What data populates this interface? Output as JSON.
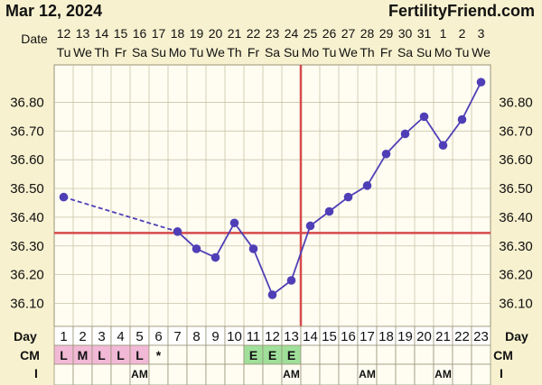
{
  "header": {
    "date_text": "Mar 12, 2024",
    "brand": "FertilityFriend.com"
  },
  "labels": {
    "date": "Date",
    "day": "Day",
    "cm": "CM",
    "i": "I"
  },
  "colors": {
    "background": "#f7f1cf",
    "plot_bg": "#fffdf2",
    "grid": "#c9c3a8",
    "series": "#4f3fb6",
    "coverline": "#d64a4a",
    "cm_pink": "#f2b9d6",
    "cm_green": "#9fdf9a",
    "day_highlight": "#ffffff"
  },
  "chart_data": {
    "type": "line",
    "title": "",
    "dates": [
      "12",
      "13",
      "14",
      "15",
      "16",
      "17",
      "18",
      "19",
      "20",
      "21",
      "22",
      "23",
      "24",
      "25",
      "26",
      "27",
      "28",
      "29",
      "30",
      "31",
      "1",
      "2",
      "3"
    ],
    "weekdays": [
      "Tu",
      "We",
      "Th",
      "Fr",
      "Sa",
      "Su",
      "Mo",
      "Tu",
      "We",
      "Th",
      "Fr",
      "Sa",
      "Su",
      "Mo",
      "Tu",
      "We",
      "Th",
      "Fr",
      "Sa",
      "Su",
      "Mo",
      "Tu",
      "We"
    ],
    "days": [
      1,
      2,
      3,
      4,
      5,
      6,
      7,
      8,
      9,
      10,
      11,
      12,
      13,
      14,
      15,
      16,
      17,
      18,
      19,
      20,
      21,
      22,
      23
    ],
    "temps": [
      36.47,
      null,
      null,
      null,
      null,
      null,
      36.35,
      36.29,
      36.26,
      36.38,
      36.29,
      36.13,
      36.18,
      36.37,
      36.42,
      36.47,
      36.51,
      36.62,
      36.69,
      36.75,
      36.65,
      36.74,
      36.87
    ],
    "y_ticks": [
      "36.10",
      "36.20",
      "36.30",
      "36.40",
      "36.50",
      "36.60",
      "36.70",
      "36.80"
    ],
    "ylim": [
      36.02,
      36.93
    ],
    "coverline": 36.345,
    "ovulation_day": 13,
    "cm": [
      "L",
      "M",
      "L",
      "L",
      "L",
      "*",
      "",
      "",
      "",
      "",
      "E",
      "E",
      "E",
      "",
      "",
      "",
      "",
      "",
      "",
      "",
      "",
      "",
      ""
    ],
    "cm_colors": [
      "pink",
      "pink",
      "pink",
      "pink",
      "pink",
      "",
      "",
      "",
      "",
      "",
      "green",
      "green",
      "green",
      "",
      "",
      "",
      "",
      "",
      "",
      "",
      "",
      "",
      ""
    ],
    "intercourse": [
      "",
      "",
      "",
      "",
      "AM",
      "",
      "",
      "",
      "",
      "",
      "",
      "",
      "AM",
      "",
      "",
      "",
      "AM",
      "",
      "",
      "",
      "AM",
      "",
      ""
    ],
    "highlight_days": [
      1,
      2,
      3,
      4,
      5,
      6,
      7,
      8,
      9,
      10,
      11,
      12,
      13,
      14,
      15,
      16,
      17,
      18,
      19,
      20,
      21,
      22,
      23
    ],
    "grid": true
  }
}
